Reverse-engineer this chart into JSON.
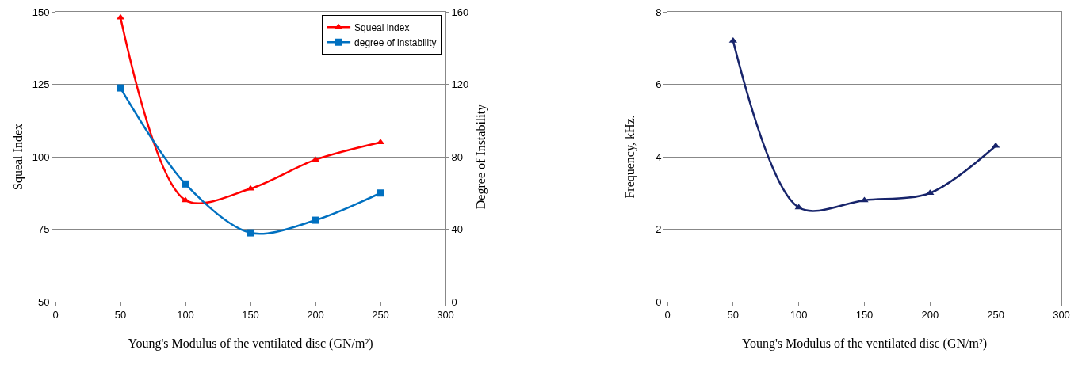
{
  "chart_data": [
    {
      "type": "line",
      "xlabel": "Young's Modulus of the ventilated disc (GN/m²)",
      "ylabel": "Squeal Index",
      "y2label": "Degree of Instability",
      "x": [
        50,
        100,
        150,
        200,
        250
      ],
      "series": [
        {
          "name": "Squeal index",
          "color": "#ff0000",
          "marker": "triangle",
          "values": [
            148,
            85,
            89,
            99,
            105
          ]
        },
        {
          "name": "degree of instability",
          "color": "#0070c0",
          "marker": "square",
          "axis": "y2",
          "values": [
            118,
            65,
            38,
            45,
            60
          ]
        }
      ],
      "xlim": [
        0,
        300
      ],
      "xticks": [
        0,
        50,
        100,
        150,
        200,
        250,
        300
      ],
      "ylim": [
        50,
        150
      ],
      "yticks": [
        50,
        75,
        100,
        125,
        150
      ],
      "y2lim": [
        0,
        160
      ],
      "y2ticks": [
        0,
        40,
        80,
        120,
        160
      ],
      "grid": "y",
      "legend": "top right",
      "line_style": "solid"
    },
    {
      "type": "line",
      "xlabel": "Young's Modulus of the ventilated disc (GN/m²)",
      "ylabel": "Frequency, kHz.",
      "x": [
        50,
        100,
        150,
        200,
        250
      ],
      "series": [
        {
          "color": "#17246b",
          "values": [
            7.2,
            2.6,
            2.8,
            3.0,
            4.3
          ]
        }
      ],
      "xlim": [
        0,
        300
      ],
      "xticks": [
        0,
        50,
        100,
        150,
        200,
        250,
        300
      ],
      "ylim": [
        0,
        8
      ],
      "yticks": [
        0,
        2,
        4,
        6,
        8
      ],
      "grid": "y",
      "legend": false,
      "marker": "triangle",
      "line_style": "solid"
    }
  ]
}
